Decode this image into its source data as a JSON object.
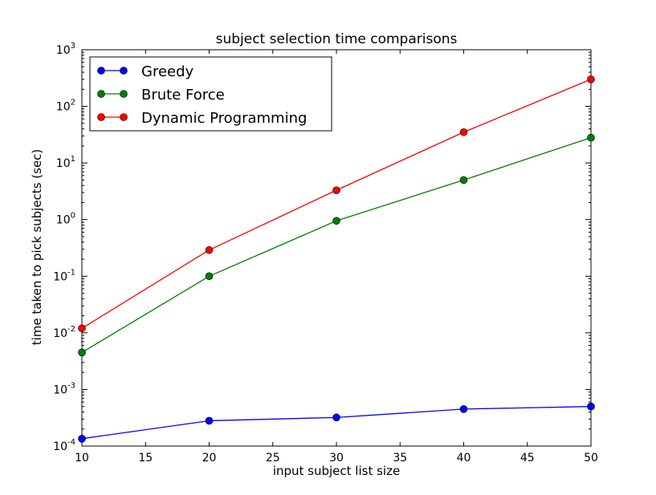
{
  "chart_data": {
    "type": "line",
    "title": "subject selection time comparisons",
    "xlabel": "input subject list size",
    "ylabel": "time taken to pick subjects (sec)",
    "xlim": [
      10,
      50
    ],
    "ylim": [
      0.0001,
      1000
    ],
    "yscale": "log",
    "grid": false,
    "legend_position": "top-left",
    "x_ticks": [
      10,
      15,
      20,
      25,
      30,
      35,
      40,
      45,
      50
    ],
    "y_tick_exponents": [
      -4,
      -3,
      -2,
      -1,
      0,
      1,
      2,
      3
    ],
    "y_tick_base": "10",
    "x": [
      10,
      20,
      30,
      40,
      50
    ],
    "series": [
      {
        "name": "Greedy",
        "color": "#0000ff",
        "values": [
          0.000135,
          0.00028,
          0.00032,
          0.00045,
          0.0005
        ]
      },
      {
        "name": "Brute Force",
        "color": "#008000",
        "values": [
          0.0045,
          0.1,
          0.95,
          5.0,
          28.0
        ]
      },
      {
        "name": "Dynamic Programming",
        "color": "#ff0000",
        "values": [
          0.012,
          0.29,
          3.3,
          35.0,
          300.0
        ]
      }
    ]
  }
}
